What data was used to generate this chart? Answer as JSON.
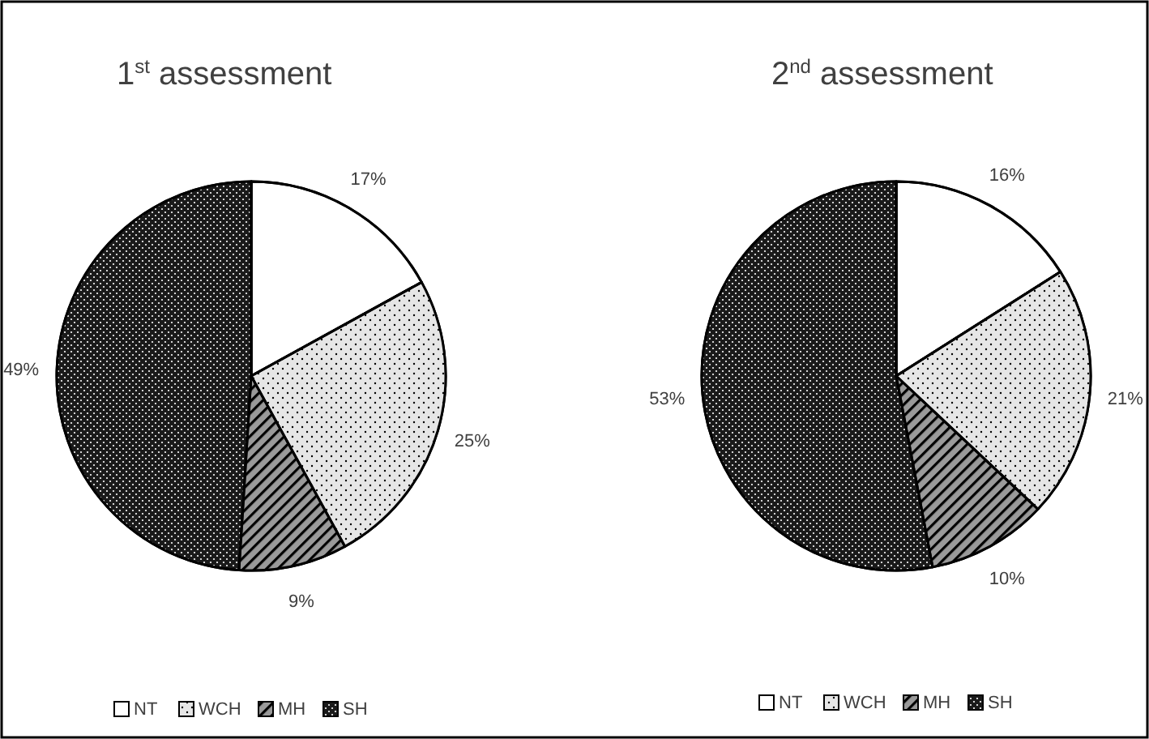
{
  "chart_data": [
    {
      "type": "pie",
      "title": "1$^{st}$ assessment",
      "categories": [
        "NT",
        "WCH",
        "MH",
        "SH"
      ],
      "values": [
        17,
        25,
        9,
        49
      ],
      "value_labels": [
        "17%",
        "25%",
        "9%",
        "49%"
      ],
      "colors": [
        "#ffffff",
        "#e6e6e6",
        "#9a9a9a",
        "#1a1a1a"
      ],
      "legend": "bottom"
    },
    {
      "type": "pie",
      "title": "2$^{nd}$ assessment",
      "categories": [
        "NT",
        "WCH",
        "MH",
        "SH"
      ],
      "values": [
        16,
        21,
        10,
        53
      ],
      "value_labels": [
        "16%",
        "21%",
        "10%",
        "53%"
      ],
      "colors": [
        "#ffffff",
        "#e6e6e6",
        "#9a9a9a",
        "#1a1a1a"
      ],
      "legend": "bottom"
    }
  ]
}
